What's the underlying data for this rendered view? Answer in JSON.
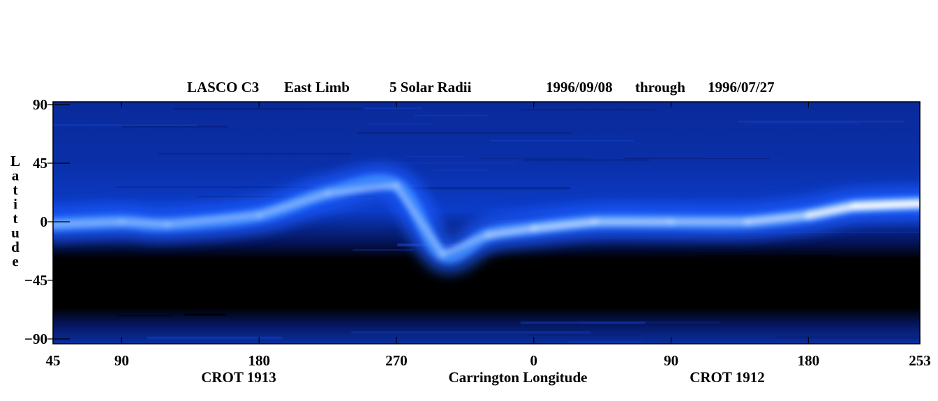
{
  "title": {
    "instrument": "LASCO C3",
    "limb": "East Limb",
    "height": "5 Solar Radii",
    "date_start": "1996/09/08",
    "through": "through",
    "date_end": "1996/07/27"
  },
  "colors": {
    "background": "#ffffff",
    "scale": [
      "#000000",
      "#00105a",
      "#0a2fb0",
      "#1a60ff",
      "#5aa8ff",
      "#ffffff"
    ]
  },
  "chart_data": {
    "type": "heatmap",
    "ylabel": "Latitude",
    "ylim": [
      -90,
      90
    ],
    "y_ticks": [
      "90",
      "45",
      "0",
      "−45",
      "−90"
    ],
    "y_tick_values": [
      90,
      45,
      0,
      -45,
      -90
    ],
    "x_ticks": [
      "45",
      "90",
      "180",
      "270",
      "0",
      "90",
      "180",
      "253"
    ],
    "x_tick_positions_unwrapped_deg": [
      45,
      90,
      180,
      270,
      360,
      450,
      540,
      613
    ],
    "xlabel": "Carrington Longitude",
    "rotation_labels": [
      "CROT 1913",
      "CROT 1912"
    ],
    "streamer_belt": {
      "description": "bright coronal streamer belt latitude vs longitude",
      "longitude_unwrapped_deg": [
        45,
        90,
        120,
        180,
        225,
        270,
        300,
        330,
        360,
        400,
        450,
        500,
        540,
        570,
        613
      ],
      "latitude_deg": [
        -2,
        0,
        -2,
        5,
        22,
        28,
        -25,
        -10,
        -5,
        0,
        0,
        0,
        5,
        12,
        14
      ],
      "intensity": [
        0.5,
        0.55,
        0.5,
        0.5,
        0.55,
        0.55,
        0.5,
        0.55,
        0.75,
        0.7,
        0.65,
        0.6,
        0.85,
        0.95,
        1.0
      ]
    }
  }
}
